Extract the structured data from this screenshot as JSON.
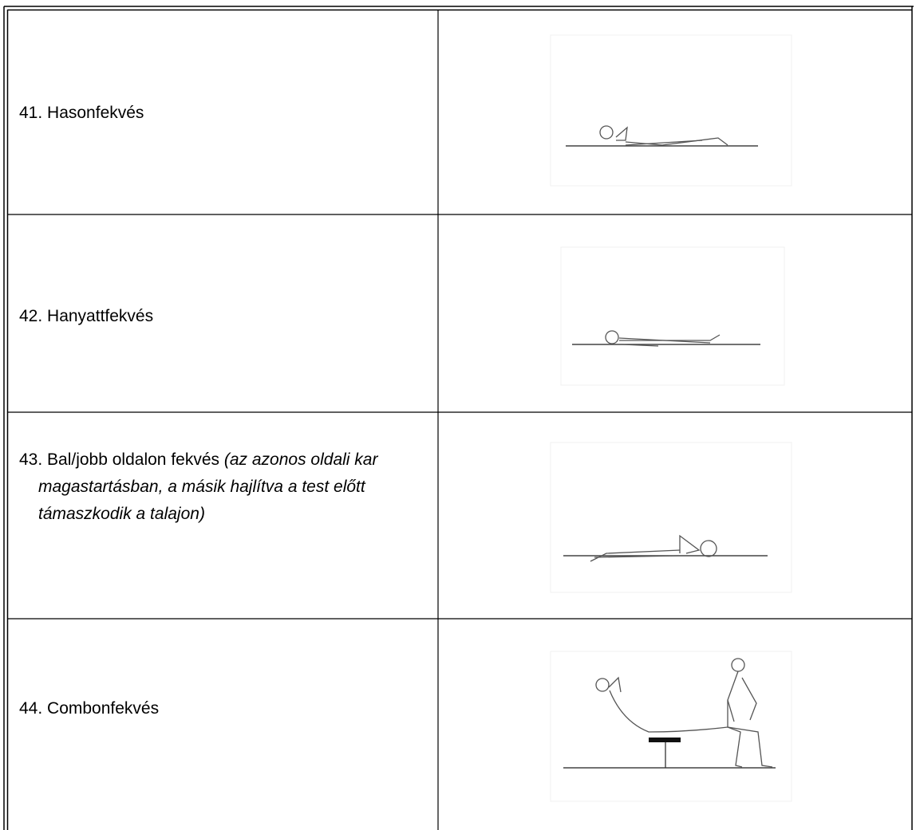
{
  "rows": [
    {
      "label": "41. Hasonfekvés"
    },
    {
      "label": "42. Hanyattfekvés"
    },
    {
      "label": "43. Bal/jobb oldalon fekvés",
      "note": "(az azonos oldali kar magastartásban, a másik hajlítva a test előtt támaszkodik a talajon)"
    },
    {
      "label": "44. Combonfekvés"
    }
  ]
}
